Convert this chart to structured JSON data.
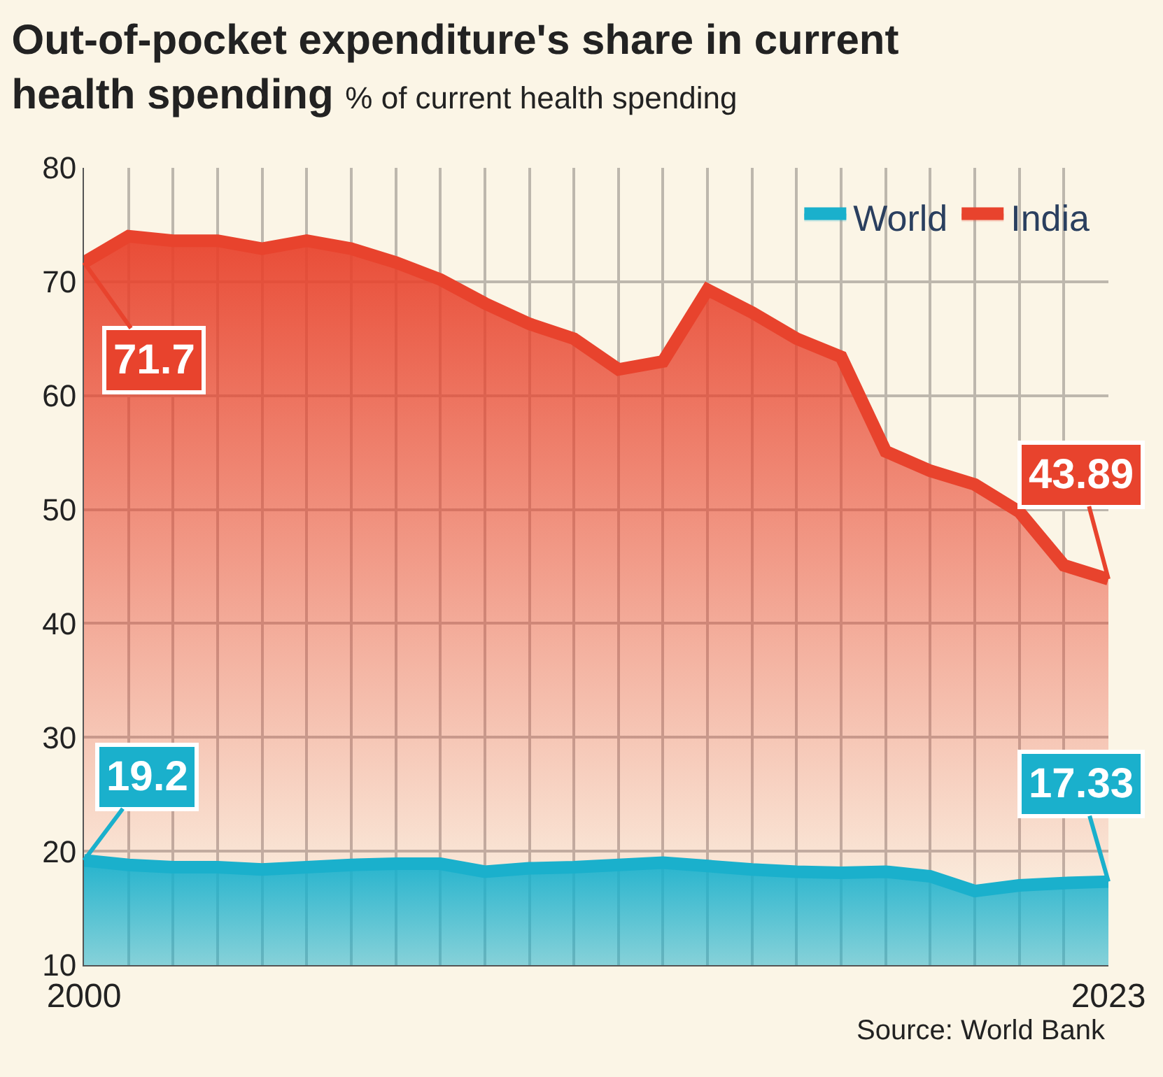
{
  "chart_data": {
    "type": "area",
    "title": "Out-of-pocket expenditure's share in current health spending",
    "subtitle": "% of current health spending",
    "x": [
      2000,
      2001,
      2002,
      2003,
      2004,
      2005,
      2006,
      2007,
      2008,
      2009,
      2010,
      2011,
      2012,
      2013,
      2014,
      2015,
      2016,
      2017,
      2018,
      2019,
      2020,
      2021,
      2022,
      2023
    ],
    "series": [
      {
        "name": "World",
        "color": "#1ab0cc",
        "values": [
          19.2,
          18.8,
          18.6,
          18.6,
          18.4,
          18.6,
          18.8,
          18.9,
          18.9,
          18.2,
          18.5,
          18.6,
          18.8,
          19.0,
          18.7,
          18.4,
          18.2,
          18.1,
          18.2,
          17.8,
          16.5,
          17.0,
          17.2,
          17.33
        ],
        "value_labels": [
          "19.2",
          null,
          null,
          null,
          null,
          null,
          null,
          null,
          null,
          null,
          null,
          null,
          null,
          null,
          null,
          null,
          null,
          null,
          null,
          null,
          null,
          null,
          null,
          "17.33"
        ]
      },
      {
        "name": "India",
        "color": "#e8432d",
        "values": [
          71.7,
          74.0,
          73.6,
          73.6,
          72.9,
          73.6,
          72.9,
          71.7,
          70.2,
          68.1,
          66.3,
          65.0,
          62.3,
          63.0,
          69.3,
          67.3,
          65.0,
          63.4,
          55.1,
          53.4,
          52.2,
          49.8,
          45.1,
          43.89
        ],
        "value_labels": [
          "71.7",
          null,
          null,
          null,
          null,
          null,
          null,
          null,
          null,
          null,
          null,
          null,
          null,
          null,
          null,
          null,
          null,
          null,
          null,
          null,
          null,
          null,
          null,
          "43.89"
        ]
      }
    ],
    "xlim": [
      2000,
      2023
    ],
    "xticks": [
      2000,
      {
        "value": 2001,
        "label": null
      },
      {
        "value": 2002,
        "label": null
      },
      {
        "value": 2003,
        "label": null
      },
      {
        "value": 2004,
        "label": null
      },
      {
        "value": 2005,
        "label": null
      },
      {
        "value": 2006,
        "label": null
      },
      {
        "value": 2007,
        "label": null
      },
      {
        "value": 2008,
        "label": null
      },
      {
        "value": 2009,
        "label": null
      },
      {
        "value": 2010,
        "label": null
      },
      {
        "value": 2011,
        "label": null
      },
      {
        "value": 2012,
        "label": null
      },
      {
        "value": 2013,
        "label": null
      },
      {
        "value": 2014,
        "label": null
      },
      {
        "value": 2015,
        "label": null
      },
      {
        "value": 2016,
        "label": null
      },
      {
        "value": 2017,
        "label": null
      },
      {
        "value": 2018,
        "label": null
      },
      {
        "value": 2019,
        "label": null
      },
      {
        "value": 2020,
        "label": null
      },
      {
        "value": 2021,
        "label": null
      },
      {
        "value": 2022,
        "label": null
      },
      2023
    ],
    "ylim": [
      10,
      80
    ],
    "yticks": [
      10,
      20,
      30,
      40,
      50,
      60,
      70,
      80
    ],
    "grid": true,
    "legend": "top right",
    "annotations": [
      "Source: World Bank"
    ]
  }
}
